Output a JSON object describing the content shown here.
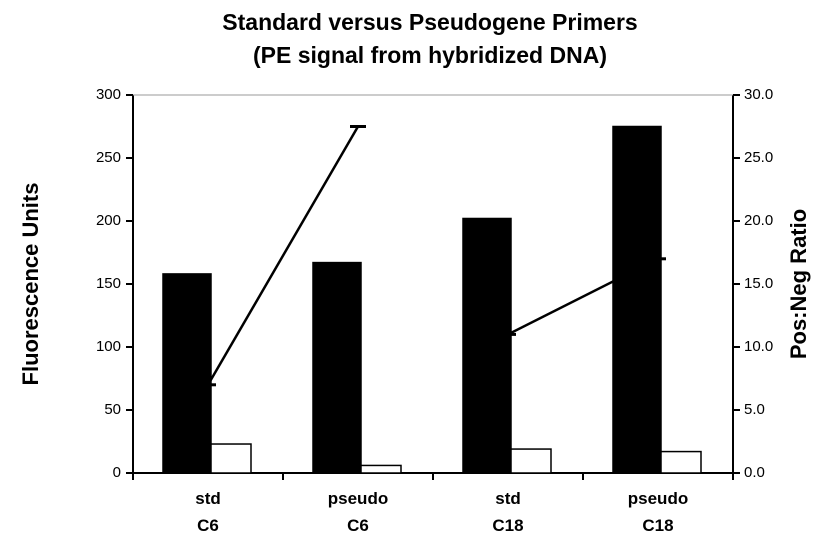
{
  "chart_data": {
    "type": "bar",
    "title": [
      "Standard versus Pseudogene Primers",
      "(PE signal from hybridized DNA)"
    ],
    "y_label": "Fluorescence Units",
    "y2_label": "Pos:Neg Ratio",
    "categories": [
      "std C6",
      "pseudo C6",
      "std C18",
      "pseudo C18"
    ],
    "series": [
      {
        "type": "bar",
        "color": "#000000",
        "values": [
          158,
          167,
          202,
          275
        ]
      },
      {
        "type": "bar",
        "color": "#ffffff",
        "values": [
          23,
          6,
          19,
          17
        ]
      },
      {
        "type": "line",
        "axis": "y2",
        "color": "#000000",
        "values": [
          7.0,
          27.5,
          null,
          null
        ]
      },
      {
        "type": "line",
        "axis": "y2",
        "color": "#000000",
        "values": [
          null,
          null,
          11.0,
          17.0
        ]
      }
    ],
    "ylim": [
      0,
      300
    ],
    "yticks": [
      0,
      50,
      100,
      150,
      200,
      250,
      300
    ],
    "y2lim": [
      0,
      30
    ],
    "y2ticks": [
      {
        "value": 0,
        "label": "0.0"
      },
      {
        "value": 5,
        "label": "5.0"
      },
      {
        "value": 10,
        "label": "10.0"
      },
      {
        "value": 15,
        "label": "15.0"
      },
      {
        "value": 20,
        "label": "20.0"
      },
      {
        "value": 25,
        "label": "25.0"
      },
      {
        "value": 30,
        "label": "30.0"
      }
    ],
    "grid": false
  }
}
